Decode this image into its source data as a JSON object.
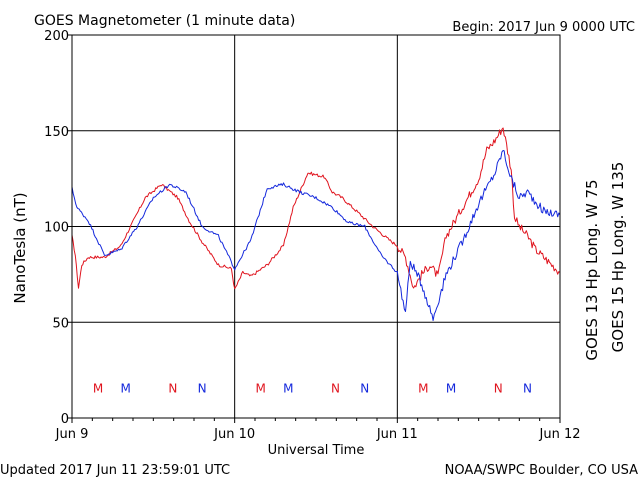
{
  "chart_data": {
    "type": "line",
    "title": "GOES Magnetometer (1 minute data)",
    "begin_label": "Begin:  2017 Jun 9 0000 UTC",
    "ylabel": "NanoTesla (nT)",
    "xlabel": "Universal Time",
    "updated": "Updated 2017 Jun 11 23:59:01 UTC",
    "credit": "NOAA/SWPC Boulder, CO USA",
    "ylim": [
      0,
      200
    ],
    "yticks": [
      0,
      50,
      100,
      150,
      200
    ],
    "xlim": [
      0,
      3
    ],
    "xtick_positions": [
      0,
      1,
      2,
      3
    ],
    "xticks": [
      "Jun 9",
      "Jun 10",
      "Jun 11",
      "Jun 12"
    ],
    "grid": true,
    "legend_position": "right",
    "series": [
      {
        "name": "GOES 13 Hp  Long. W 75",
        "color": "#e0141e",
        "x": [
          0,
          0.02,
          0.04,
          0.06,
          0.1,
          0.2,
          0.3,
          0.36,
          0.45,
          0.55,
          0.65,
          0.72,
          0.8,
          0.9,
          0.98,
          1.0,
          1.05,
          1.1,
          1.2,
          1.3,
          1.36,
          1.45,
          1.55,
          1.6,
          1.66,
          1.75,
          1.85,
          1.95,
          2.0,
          2.05,
          2.1,
          2.15,
          2.2,
          2.25,
          2.3,
          2.4,
          2.5,
          2.55,
          2.6,
          2.65,
          2.7,
          2.72,
          2.75,
          2.8,
          2.85,
          2.9,
          2.95,
          3.0
        ],
        "y": [
          95,
          85,
          68,
          80,
          84,
          84,
          90,
          100,
          115,
          122,
          115,
          103,
          92,
          80,
          78,
          67,
          76,
          74,
          80,
          90,
          110,
          128,
          126,
          118,
          115,
          108,
          100,
          93,
          90,
          84,
          68,
          75,
          80,
          74,
          95,
          110,
          125,
          140,
          145,
          152,
          130,
          105,
          100,
          95,
          88,
          84,
          80,
          76
        ]
      },
      {
        "name": "GOES 15 Hp  Long. W 135",
        "color": "#1428dc",
        "x": [
          0,
          0.03,
          0.1,
          0.2,
          0.3,
          0.4,
          0.5,
          0.6,
          0.7,
          0.8,
          0.9,
          1.0,
          1.1,
          1.2,
          1.3,
          1.4,
          1.5,
          1.6,
          1.7,
          1.8,
          1.9,
          2.0,
          2.05,
          2.08,
          2.15,
          2.22,
          2.3,
          2.4,
          2.5,
          2.6,
          2.65,
          2.7,
          2.75,
          2.8,
          2.9,
          3.0
        ],
        "y": [
          120,
          110,
          103,
          85,
          88,
          100,
          115,
          122,
          118,
          100,
          95,
          78,
          93,
          120,
          122,
          118,
          115,
          110,
          102,
          100,
          85,
          76,
          55,
          82,
          70,
          52,
          75,
          92,
          112,
          128,
          140,
          125,
          115,
          118,
          108,
          106
        ]
      }
    ],
    "markers": [
      {
        "label": "M",
        "x": 0.16,
        "series": 0
      },
      {
        "label": "M",
        "x": 0.33,
        "series": 1
      },
      {
        "label": "N",
        "x": 0.62,
        "series": 0
      },
      {
        "label": "N",
        "x": 0.8,
        "series": 1
      },
      {
        "label": "M",
        "x": 1.16,
        "series": 0
      },
      {
        "label": "M",
        "x": 1.33,
        "series": 1
      },
      {
        "label": "N",
        "x": 1.62,
        "series": 0
      },
      {
        "label": "N",
        "x": 1.8,
        "series": 1
      },
      {
        "label": "M",
        "x": 2.16,
        "series": 0
      },
      {
        "label": "M",
        "x": 2.33,
        "series": 1
      },
      {
        "label": "N",
        "x": 2.62,
        "series": 0
      },
      {
        "label": "N",
        "x": 2.8,
        "series": 1
      }
    ],
    "marker_level": 16
  }
}
